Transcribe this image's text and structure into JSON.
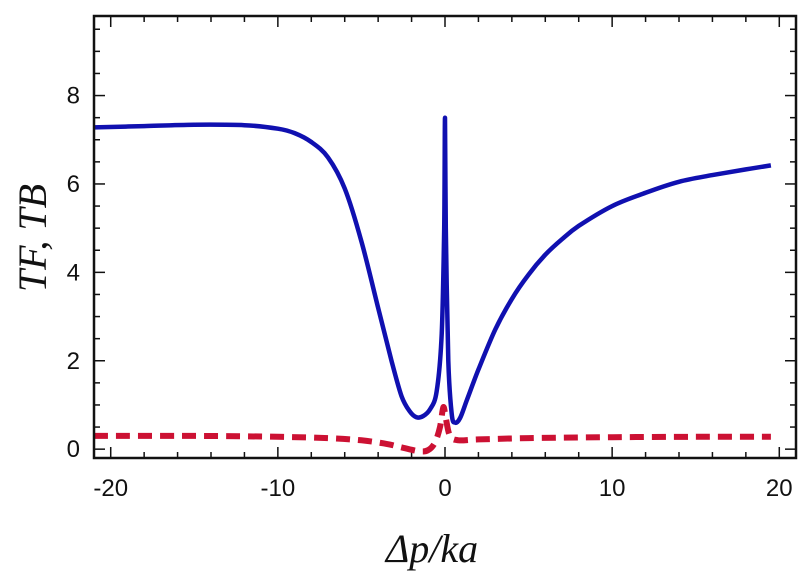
{
  "chart_data": {
    "type": "line",
    "title": "",
    "xlabel": "Δp/ka",
    "ylabel": "TF, TB",
    "xlim": [
      -21,
      21
    ],
    "ylim": [
      -0.2,
      9.8
    ],
    "x_ticks": [
      -20,
      -10,
      0,
      10,
      20
    ],
    "y_ticks": [
      0,
      2,
      4,
      6,
      8
    ],
    "x_tick_labels": [
      "-20",
      "-10",
      "0",
      "10",
      "20"
    ],
    "y_tick_labels": [
      "0",
      "2",
      "4",
      "6",
      "8"
    ],
    "grid": false,
    "legend": "none",
    "series": [
      {
        "style": "solid",
        "color": "#1010b0",
        "points": [
          [
            -21,
            7.28
          ],
          [
            -18,
            7.31
          ],
          [
            -15,
            7.34
          ],
          [
            -12,
            7.33
          ],
          [
            -10,
            7.25
          ],
          [
            -9,
            7.15
          ],
          [
            -8,
            6.95
          ],
          [
            -7,
            6.6
          ],
          [
            -6,
            5.9
          ],
          [
            -5,
            4.7
          ],
          [
            -4,
            3.2
          ],
          [
            -3.2,
            2.0
          ],
          [
            -2.6,
            1.2
          ],
          [
            -2.1,
            0.85
          ],
          [
            -1.7,
            0.72
          ],
          [
            -1.3,
            0.75
          ],
          [
            -0.9,
            0.9
          ],
          [
            -0.5,
            1.3
          ],
          [
            -0.2,
            2.6
          ],
          [
            -0.05,
            5.0
          ],
          [
            0.0,
            7.5
          ],
          [
            0.05,
            5.0
          ],
          [
            0.2,
            2.0
          ],
          [
            0.4,
            0.8
          ],
          [
            0.6,
            0.6
          ],
          [
            0.9,
            0.7
          ],
          [
            1.3,
            1.1
          ],
          [
            2,
            1.8
          ],
          [
            3,
            2.7
          ],
          [
            4,
            3.4
          ],
          [
            5,
            3.95
          ],
          [
            6,
            4.4
          ],
          [
            7,
            4.75
          ],
          [
            8,
            5.05
          ],
          [
            10,
            5.5
          ],
          [
            12,
            5.8
          ],
          [
            14,
            6.05
          ],
          [
            16,
            6.2
          ],
          [
            18,
            6.33
          ],
          [
            19.5,
            6.42
          ]
        ]
      },
      {
        "style": "dashed",
        "color": "#cc1133",
        "points": [
          [
            -21,
            0.3
          ],
          [
            -15,
            0.3
          ],
          [
            -10,
            0.28
          ],
          [
            -7,
            0.25
          ],
          [
            -5,
            0.2
          ],
          [
            -3.5,
            0.12
          ],
          [
            -2.5,
            0.03
          ],
          [
            -1.5,
            -0.05
          ],
          [
            -1.0,
            -0.02
          ],
          [
            -0.6,
            0.15
          ],
          [
            -0.3,
            0.5
          ],
          [
            -0.1,
            0.95
          ],
          [
            0.05,
            0.7
          ],
          [
            0.3,
            0.3
          ],
          [
            0.8,
            0.2
          ],
          [
            2,
            0.22
          ],
          [
            5,
            0.25
          ],
          [
            10,
            0.27
          ],
          [
            15,
            0.28
          ],
          [
            19.5,
            0.28
          ]
        ]
      }
    ]
  }
}
